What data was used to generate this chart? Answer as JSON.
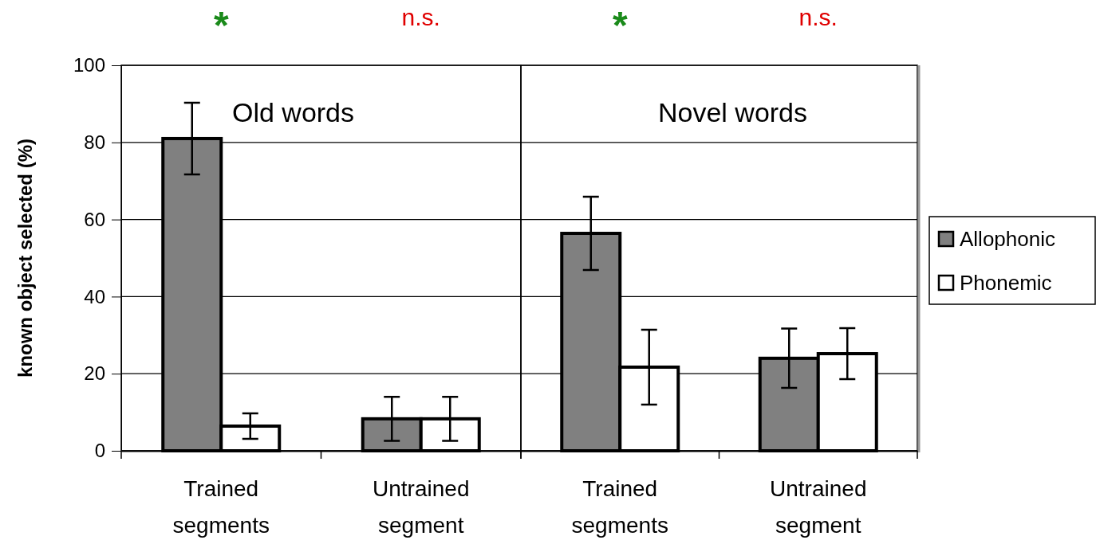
{
  "chart_data": [
    {
      "type": "bar",
      "title": "Old words",
      "ylabel": "known object selected (%)",
      "categories": [
        "Trained segments",
        "Untrained segment"
      ],
      "series": [
        {
          "color": "#808080",
          "values": [
            81,
            8.3
          ],
          "errors": [
            9.3,
            5.7
          ]
        },
        {
          "color": "#ffffff",
          "values": [
            6.4,
            8.3
          ],
          "errors": [
            3.3,
            5.7
          ]
        }
      ],
      "ylim": [
        0,
        100
      ],
      "yticks": [
        0,
        20,
        40,
        60,
        80,
        100
      ],
      "grid": "y",
      "annotations": [
        "*",
        "n.s."
      ]
    },
    {
      "type": "bar",
      "title": "Novel words",
      "categories": [
        "Trained segments",
        "Untrained segment"
      ],
      "series": [
        {
          "name": "Allophonic",
          "color": "#808080",
          "values": [
            56.4,
            24
          ],
          "errors": [
            9.5,
            7.7
          ]
        },
        {
          "name": "Phonemic",
          "color": "#ffffff",
          "values": [
            21.7,
            25.2
          ],
          "errors": [
            9.7,
            6.6
          ]
        }
      ],
      "ylim": [
        0,
        100
      ],
      "yticks": [
        0,
        20,
        40,
        60,
        80,
        100
      ],
      "grid": "y",
      "tick_labels": "x",
      "legend": "right",
      "annotations": [
        "*",
        "n.s."
      ]
    }
  ]
}
